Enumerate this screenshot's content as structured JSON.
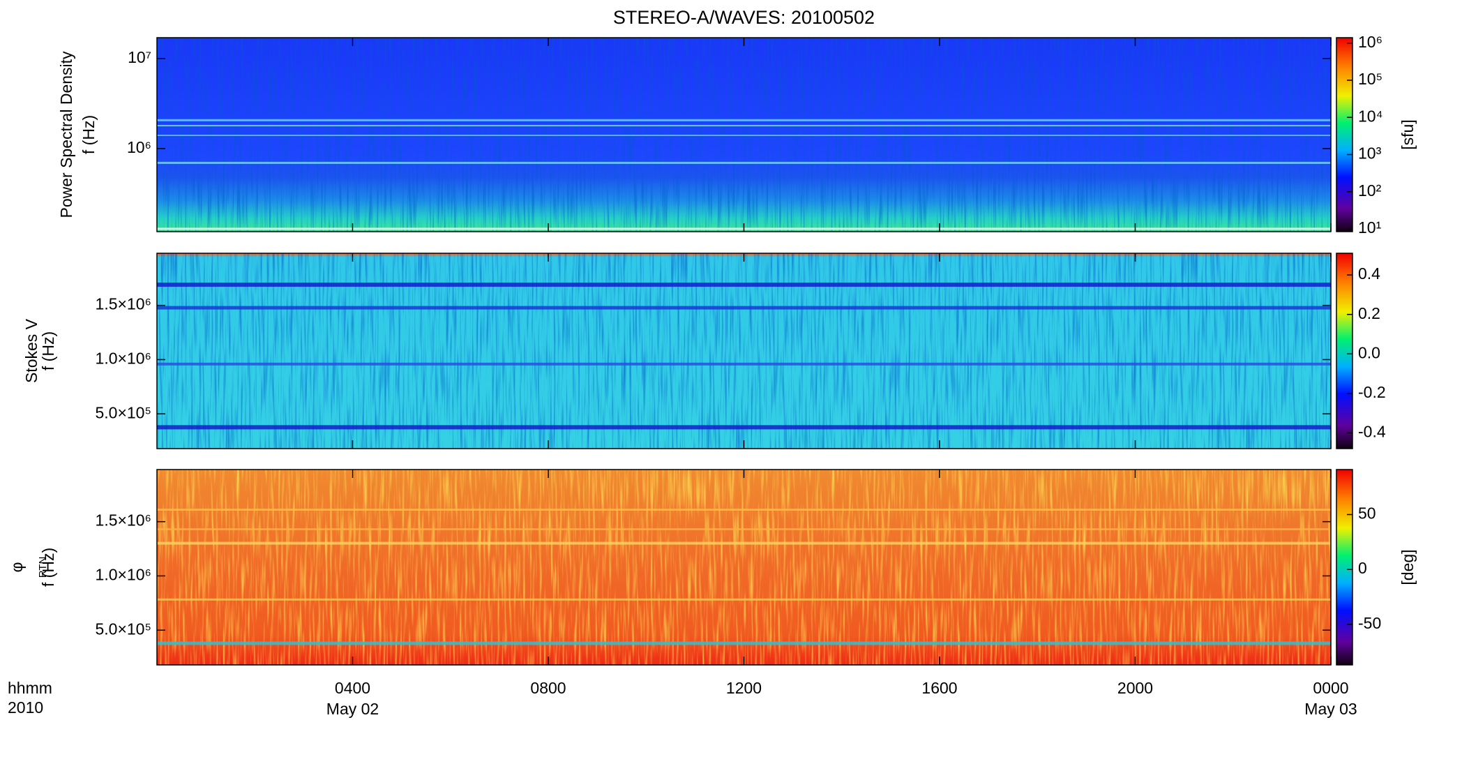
{
  "chart_data": [
    {
      "type": "heatmap",
      "title": "STEREO-A/WAVES: 20100502",
      "ylabel": [
        "Power Spectral Density",
        "f (Hz)"
      ],
      "ylog": true,
      "ylim": [
        120000,
        17000000
      ],
      "yticks": [
        {
          "value": 1000000,
          "label": "10⁶"
        },
        {
          "value": 10000000,
          "label": "10⁷"
        }
      ],
      "xlim": [
        0,
        24
      ],
      "xticks": [
        4,
        8,
        12,
        16,
        20,
        24
      ],
      "colorbar_label": "[sfu]",
      "clog": true,
      "clim": [
        8.4,
        1400000
      ],
      "cticks": [
        {
          "value": 10,
          "label": "10¹"
        },
        {
          "value": 100,
          "label": "10²"
        },
        {
          "value": 1000,
          "label": "10³"
        },
        {
          "value": 10000,
          "label": "10⁴"
        },
        {
          "value": 100000,
          "label": "10⁵"
        },
        {
          "value": 1000000,
          "label": "10⁶"
        }
      ]
    },
    {
      "type": "heatmap",
      "ylabel": [
        "Stokes V",
        "f (Hz)"
      ],
      "ylog": false,
      "ylim": [
        180000,
        1980000
      ],
      "yticks": [
        {
          "value": 500000,
          "label": "5.0×10⁵"
        },
        {
          "value": 1000000,
          "label": "1.0×10⁶"
        },
        {
          "value": 1500000,
          "label": "1.5×10⁶"
        }
      ],
      "xlim": [
        0,
        24
      ],
      "xticks": [
        4,
        8,
        12,
        16,
        20,
        24
      ],
      "clog": false,
      "clim": [
        -0.48,
        0.51
      ],
      "cticks": [
        -0.4,
        -0.2,
        {
          "value": 0,
          "label": "0.0"
        },
        0.2,
        0.4
      ]
    },
    {
      "type": "heatmap",
      "ylabel": [
        "φ",
        "f (Hz)"
      ],
      "ylabel_subscript": "RTN",
      "ylog": false,
      "ylim": [
        180000,
        1980000
      ],
      "yticks": [
        {
          "value": 500000,
          "label": "5.0×10⁵"
        },
        {
          "value": 1000000,
          "label": "1.0×10⁶"
        },
        {
          "value": 1500000,
          "label": "1.5×10⁶"
        }
      ],
      "xlim": [
        0,
        24
      ],
      "xticks": [
        {
          "value": 4,
          "label": "0400"
        },
        {
          "value": 8,
          "label": "0800"
        },
        {
          "value": 12,
          "label": "1200"
        },
        {
          "value": 16,
          "label": "1600"
        },
        {
          "value": 20,
          "label": "2000"
        },
        {
          "value": 24,
          "label": "0000"
        }
      ],
      "xdates": [
        {
          "value": 4,
          "label": "May 02"
        },
        {
          "value": 24,
          "label": "May 03"
        }
      ],
      "xlabel": [
        "hhmm",
        "2010"
      ],
      "colorbar_label": "[deg]",
      "clog": false,
      "clim": [
        -87,
        91
      ],
      "cticks": [
        -50,
        0,
        50
      ]
    }
  ]
}
